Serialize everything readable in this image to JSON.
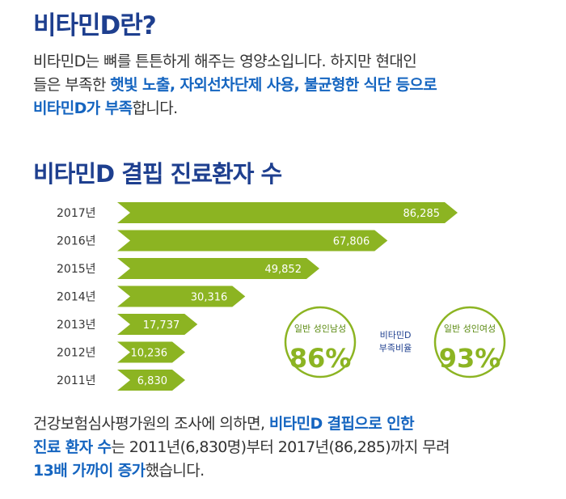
{
  "heading1": "비타민D란?",
  "intro": {
    "line1": "비타민D는 뼈를 튼튼하게 해주는 영양소입니다. 하지만 현대인",
    "line2_a": "들은 부족한 ",
    "line2_b": "햇빛 노출, 자외선차단제 사용, 불균형한 식단 등으로",
    "line3_a": "비타민D가 부족",
    "line3_b": "합니다."
  },
  "heading2": "비타민D 결핍 진료환자 수",
  "chart_data": {
    "type": "bar",
    "orientation": "horizontal",
    "categories": [
      "2017년",
      "2016년",
      "2015년",
      "2014년",
      "2013년",
      "2012년",
      "2011년"
    ],
    "values": [
      86285,
      67806,
      49852,
      30316,
      17737,
      10236,
      6830
    ],
    "value_labels": [
      "86,285",
      "67,806",
      "49,852",
      "30,316",
      "17,737",
      "10,236",
      "6,830"
    ],
    "bar_color": "#8cb422"
  },
  "stats": {
    "male_label": "일반 성인남성",
    "male_value": "86%",
    "middle_line1": "비타민D",
    "middle_line2": "부족비율",
    "female_label": "일반 성인여성",
    "female_value": "93%"
  },
  "conclusion": {
    "line1_a": "건강보험심사평가원의 조사에 의하면, ",
    "line1_b": "비타민D 결핍으로 인한",
    "line2_a": "진료 환자 수",
    "line2_b": "는 2011년(6,830명)부터 2017년(86,285)까지 무려",
    "line3_a": "13배 가까이 증가",
    "line3_b": "했습니다."
  },
  "colors": {
    "heading": "#1e3f8f",
    "highlight": "#1565c0",
    "bar": "#8cb422",
    "circle": "#8cb422"
  }
}
